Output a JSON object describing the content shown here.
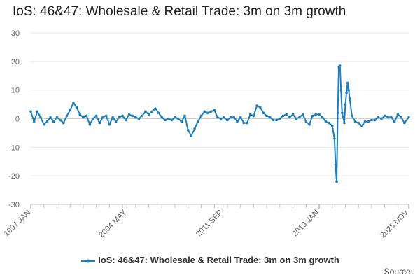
{
  "title": "IoS: 46&47: Wholesale & Retail Trade: 3m on 3m growth",
  "source_label": "Source:",
  "chart_data": {
    "type": "line",
    "title": "IoS: 46&47: Wholesale & Retail Trade: 3m on 3m growth",
    "xlabel": "",
    "ylabel": "",
    "ylim": [
      -30,
      30
    ],
    "yticks": [
      30,
      20,
      10,
      0,
      -10,
      -20,
      -30
    ],
    "grid": true,
    "legend_position": "bottom",
    "series_color": "#1a7fbb",
    "x_tick_labels": [
      "1997 JAN",
      "2004 MAY",
      "2011 SEP",
      "2019 JAN",
      "2025 NOV"
    ],
    "x_range": [
      "1997-01",
      "2025-11"
    ],
    "series": [
      {
        "name": "IoS: 46&47: Wholesale & Retail Trade: 3m on 3m growth",
        "points": [
          [
            "1997-01",
            2.5
          ],
          [
            "1997-04",
            -1.0
          ],
          [
            "1997-07",
            2.5
          ],
          [
            "1997-10",
            0.5
          ],
          [
            "1998-01",
            -2.0
          ],
          [
            "1998-04",
            -1.0
          ],
          [
            "1998-07",
            0.5
          ],
          [
            "1998-10",
            -1.0
          ],
          [
            "1999-01",
            0.5
          ],
          [
            "1999-04",
            -0.5
          ],
          [
            "1999-07",
            -1.5
          ],
          [
            "1999-10",
            1.0
          ],
          [
            "2000-01",
            3.0
          ],
          [
            "2000-04",
            5.5
          ],
          [
            "2000-07",
            4.0
          ],
          [
            "2000-10",
            1.5
          ],
          [
            "2001-01",
            0.5
          ],
          [
            "2001-04",
            1.0
          ],
          [
            "2001-07",
            -2.0
          ],
          [
            "2001-10",
            0.0
          ],
          [
            "2002-01",
            1.0
          ],
          [
            "2002-04",
            -1.5
          ],
          [
            "2002-07",
            0.5
          ],
          [
            "2002-10",
            1.0
          ],
          [
            "2003-01",
            -2.0
          ],
          [
            "2003-04",
            0.5
          ],
          [
            "2003-07",
            -1.0
          ],
          [
            "2003-10",
            0.5
          ],
          [
            "2004-01",
            1.0
          ],
          [
            "2004-04",
            -0.5
          ],
          [
            "2004-07",
            1.5
          ],
          [
            "2004-10",
            1.0
          ],
          [
            "2005-01",
            0.5
          ],
          [
            "2005-04",
            0.0
          ],
          [
            "2005-07",
            1.0
          ],
          [
            "2005-10",
            2.5
          ],
          [
            "2006-01",
            1.5
          ],
          [
            "2006-04",
            2.5
          ],
          [
            "2006-07",
            3.5
          ],
          [
            "2006-10",
            2.0
          ],
          [
            "2007-01",
            0.5
          ],
          [
            "2007-04",
            -0.5
          ],
          [
            "2007-07",
            0.0
          ],
          [
            "2007-10",
            -0.5
          ],
          [
            "2008-01",
            0.5
          ],
          [
            "2008-04",
            0.0
          ],
          [
            "2008-07",
            -1.0
          ],
          [
            "2008-10",
            1.0
          ],
          [
            "2009-01",
            -4.0
          ],
          [
            "2009-04",
            -6.0
          ],
          [
            "2009-07",
            -3.5
          ],
          [
            "2009-10",
            -1.0
          ],
          [
            "2010-01",
            1.0
          ],
          [
            "2010-04",
            2.5
          ],
          [
            "2010-07",
            2.0
          ],
          [
            "2010-10",
            2.5
          ],
          [
            "2011-01",
            3.0
          ],
          [
            "2011-04",
            0.5
          ],
          [
            "2011-07",
            0.0
          ],
          [
            "2011-10",
            0.5
          ],
          [
            "2012-01",
            -0.5
          ],
          [
            "2012-04",
            0.5
          ],
          [
            "2012-07",
            0.5
          ],
          [
            "2012-10",
            -1.0
          ],
          [
            "2013-01",
            0.5
          ],
          [
            "2013-04",
            -1.5
          ],
          [
            "2013-07",
            -1.5
          ],
          [
            "2013-10",
            1.5
          ],
          [
            "2014-01",
            1.0
          ],
          [
            "2014-04",
            4.5
          ],
          [
            "2014-07",
            4.0
          ],
          [
            "2014-10",
            2.0
          ],
          [
            "2015-01",
            1.0
          ],
          [
            "2015-04",
            0.5
          ],
          [
            "2015-07",
            -0.5
          ],
          [
            "2015-10",
            -0.5
          ],
          [
            "2016-01",
            0.0
          ],
          [
            "2016-04",
            1.0
          ],
          [
            "2016-07",
            1.5
          ],
          [
            "2016-10",
            0.5
          ],
          [
            "2017-01",
            1.5
          ],
          [
            "2017-04",
            0.0
          ],
          [
            "2017-07",
            0.5
          ],
          [
            "2017-10",
            1.5
          ],
          [
            "2018-01",
            -1.0
          ],
          [
            "2018-04",
            -2.0
          ],
          [
            "2018-07",
            1.0
          ],
          [
            "2018-10",
            1.5
          ],
          [
            "2019-01",
            1.5
          ],
          [
            "2019-04",
            0.5
          ],
          [
            "2019-07",
            -1.0
          ],
          [
            "2019-10",
            -1.5
          ],
          [
            "2020-01",
            -2.5
          ],
          [
            "2020-03",
            -7.0
          ],
          [
            "2020-04",
            -16.0
          ],
          [
            "2020-05",
            -22.0
          ],
          [
            "2020-06",
            2.0
          ],
          [
            "2020-07",
            18.0
          ],
          [
            "2020-08",
            18.5
          ],
          [
            "2020-09",
            10.0
          ],
          [
            "2020-10",
            2.0
          ],
          [
            "2020-11",
            0.5
          ],
          [
            "2020-12",
            -1.5
          ],
          [
            "2021-01",
            5.0
          ],
          [
            "2021-02",
            9.0
          ],
          [
            "2021-03",
            12.5
          ],
          [
            "2021-04",
            10.0
          ],
          [
            "2021-05",
            7.0
          ],
          [
            "2021-07",
            1.0
          ],
          [
            "2021-10",
            -1.0
          ],
          [
            "2022-01",
            -1.5
          ],
          [
            "2022-04",
            -2.5
          ],
          [
            "2022-07",
            -1.0
          ],
          [
            "2022-10",
            -1.0
          ],
          [
            "2023-01",
            -0.5
          ],
          [
            "2023-04",
            -0.5
          ],
          [
            "2023-07",
            0.5
          ],
          [
            "2023-10",
            0.0
          ],
          [
            "2024-01",
            1.0
          ],
          [
            "2024-04",
            0.5
          ],
          [
            "2024-07",
            0.5
          ],
          [
            "2024-10",
            -1.0
          ],
          [
            "2025-01",
            1.5
          ],
          [
            "2025-04",
            0.5
          ],
          [
            "2025-07",
            -1.5
          ],
          [
            "2025-11",
            0.5
          ]
        ]
      }
    ]
  }
}
